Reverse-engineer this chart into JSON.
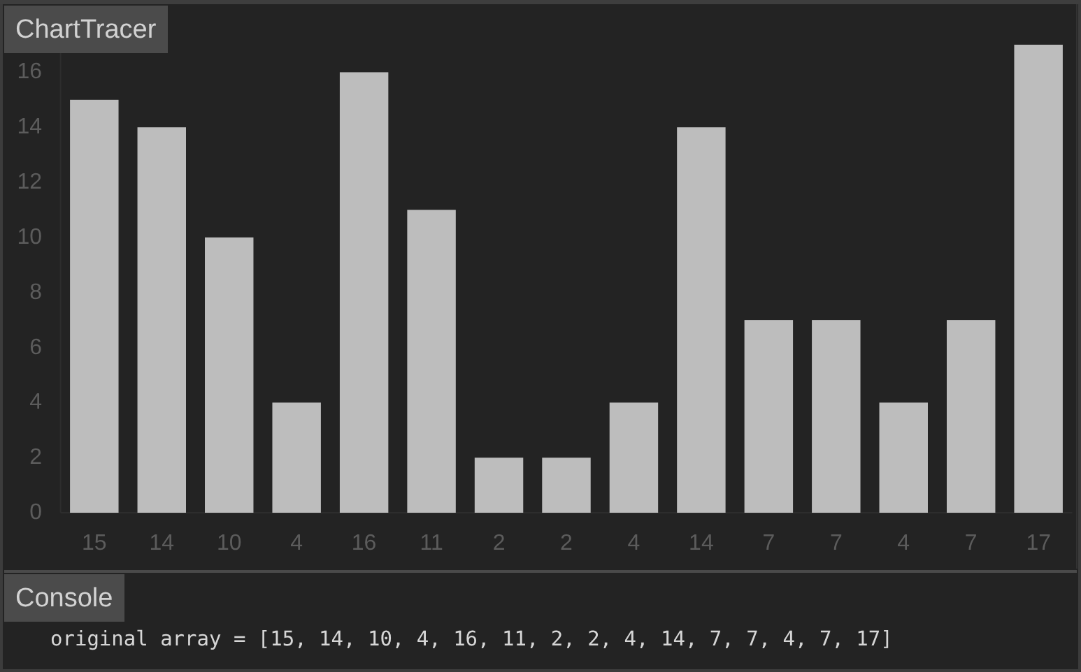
{
  "chart_data": {
    "type": "bar",
    "title": "ChartTracer",
    "categories": [
      "15",
      "14",
      "10",
      "4",
      "16",
      "11",
      "2",
      "2",
      "4",
      "14",
      "7",
      "7",
      "4",
      "7",
      "17"
    ],
    "values": [
      15,
      14,
      10,
      4,
      16,
      11,
      2,
      2,
      4,
      14,
      7,
      7,
      4,
      7,
      17
    ],
    "color": "#bdbdbd",
    "ylim": [
      0,
      17
    ],
    "yticks": [
      0,
      2,
      4,
      6,
      8,
      10,
      12,
      14,
      16
    ],
    "annotations": [
      "Console",
      "original array = [15, 14, 10, 4, 16, 11, 2, 2, 4, 14, 7, 7, 4, 7, 17]"
    ]
  }
}
